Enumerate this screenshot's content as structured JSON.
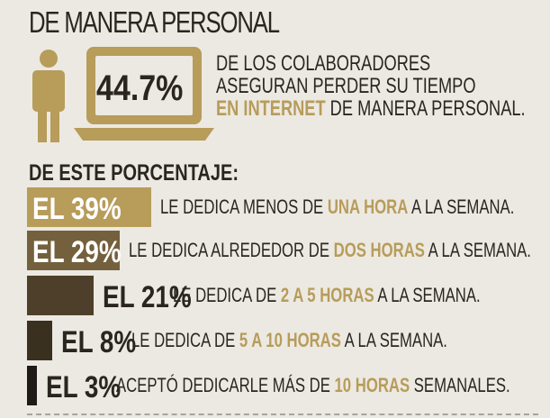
{
  "header": {
    "title": "DE MANERA PERSONAL"
  },
  "stat": {
    "percent": "44.7%",
    "line1": "DE LOS COLABORADORES",
    "line2": "ASEGURAN PERDER SU TIEMPO",
    "line3_highlight": "EN INTERNET",
    "line3_rest": "DE MANERA PERSONAL."
  },
  "breakdown": {
    "subtitle": "DE ESTE PORCENTAJE:",
    "rows": [
      {
        "label": "EL 39%",
        "value": 39,
        "pre": "LE DEDICA MENOS DE",
        "hl": "UNA HORA",
        "post": "A LA SEMANA."
      },
      {
        "label": "EL 29%",
        "value": 29,
        "pre": "LE DEDICA ALREDEDOR DE",
        "hl": "DOS HORAS",
        "post": "A LA SEMANA."
      },
      {
        "label": "EL 21%",
        "value": 21,
        "pre": "LE DEDICA DE",
        "hl": "2 A 5 HORAS",
        "post": "A LA SEMANA."
      },
      {
        "label": "EL 8%",
        "value": 8,
        "pre": "LE DEDICA DE",
        "hl": "5 A 10 HORAS",
        "post": "A LA SEMANA."
      },
      {
        "label": "EL 3%",
        "value": 3,
        "pre": "ACEPTÓ DEDICARLE MÁS DE",
        "hl": "10 HORAS",
        "post": "SEMANALES."
      }
    ]
  },
  "colors": {
    "gold": "#b79c5a",
    "dark": "#2b2520",
    "background": "#ece9e2",
    "bar_colors": [
      "#b79c5a",
      "#74603c",
      "#4d3f29",
      "#3a3020",
      "#1f1a15"
    ]
  },
  "icons": [
    "person-icon",
    "laptop-icon"
  ]
}
